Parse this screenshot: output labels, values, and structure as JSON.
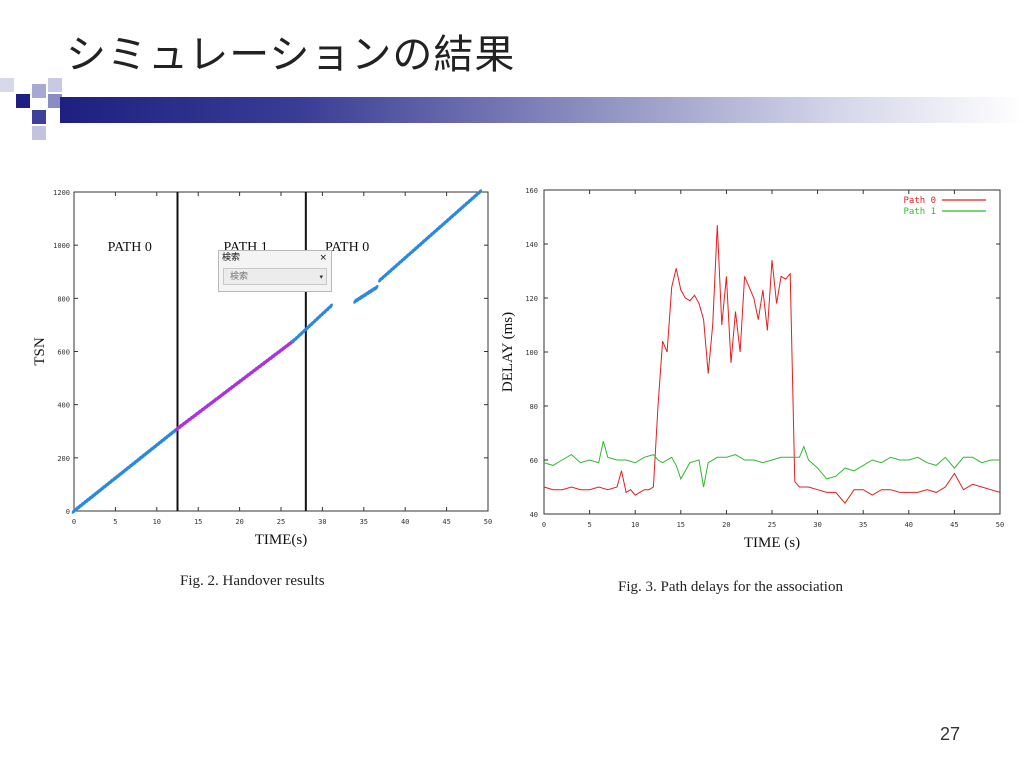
{
  "slide": {
    "title": "シミュレーションの結果",
    "page_number": "27",
    "accent_color": "#1d2080"
  },
  "search_popup": {
    "header": "検索",
    "close_icon": "×",
    "select_value": "検索",
    "arrow": "▾"
  },
  "figures": {
    "fig2_caption": "Fig. 2. Handover results",
    "fig3_caption": "Fig. 3. Path delays for the association"
  },
  "chart_data": [
    {
      "type": "scatter",
      "xlabel": "TIME(s)",
      "ylabel": "TSN",
      "xlim": [
        0,
        50
      ],
      "ylim": [
        0,
        1200
      ],
      "xticks": [
        "0",
        "5",
        "10",
        "15",
        "20",
        "25",
        "30",
        "35",
        "40",
        "45",
        "50"
      ],
      "yticks": [
        "0",
        "200",
        "400",
        "600",
        "800",
        "1000",
        "1200"
      ],
      "region_labels": [
        "PATH 0",
        "PATH 1",
        "PATH 0"
      ],
      "handover_lines": [
        12.5,
        28
      ],
      "series": [
        {
          "color": "#2b88e0",
          "x": [
            0,
            12.5
          ],
          "y": [
            0,
            310
          ]
        },
        {
          "color": "#a833e0",
          "x": [
            12.5,
            26.5
          ],
          "y": [
            310,
            640
          ]
        },
        {
          "color": "#2b88e0",
          "x": [
            26.5,
            31
          ],
          "y": [
            640,
            770
          ]
        },
        {
          "color": "#2b88e0",
          "x": [
            34,
            36.5
          ],
          "y": [
            790,
            840
          ]
        },
        {
          "color": "#2b88e0",
          "x": [
            37,
            49
          ],
          "y": [
            870,
            1200
          ]
        }
      ]
    },
    {
      "type": "line",
      "xlabel": "TIME (s)",
      "ylabel": "DELAY (ms)",
      "xlim": [
        0,
        50
      ],
      "ylim": [
        40,
        160
      ],
      "xticks": [
        "0",
        "5",
        "10",
        "15",
        "20",
        "25",
        "30",
        "35",
        "40",
        "45",
        "50"
      ],
      "yticks": [
        "40",
        "60",
        "80",
        "100",
        "120",
        "140",
        "160"
      ],
      "legend": "top-right",
      "series": [
        {
          "name": "Path 0",
          "color": "#e02020",
          "x": [
            0,
            1,
            2,
            3,
            4,
            5,
            6,
            7,
            8,
            8.5,
            9,
            9.5,
            10,
            10.5,
            11,
            11.5,
            12,
            12.5,
            13,
            13.5,
            14,
            14.5,
            15,
            15.5,
            16,
            16.5,
            17,
            17.5,
            18,
            18.5,
            19,
            19.5,
            20,
            20.5,
            21,
            21.5,
            22,
            22.5,
            23,
            23.5,
            24,
            24.5,
            25,
            25.5,
            26,
            26.5,
            27,
            27.5,
            28,
            29,
            30,
            31,
            32,
            33,
            34,
            35,
            36,
            37,
            38,
            39,
            40,
            41,
            42,
            43,
            44,
            45,
            46,
            47,
            48,
            49,
            50
          ],
          "y": [
            50,
            49,
            49,
            50,
            49,
            49,
            50,
            49,
            50,
            56,
            48,
            49,
            47,
            48,
            49,
            49,
            50,
            80,
            104,
            100,
            124,
            131,
            123,
            120,
            119,
            121,
            118,
            112,
            92,
            110,
            147,
            110,
            128,
            96,
            115,
            100,
            128,
            124,
            120,
            112,
            123,
            108,
            134,
            118,
            128,
            127,
            129,
            52,
            50,
            50,
            49,
            48,
            48,
            44,
            49,
            49,
            47,
            49,
            49,
            48,
            48,
            48,
            49,
            48,
            50,
            55,
            49,
            51,
            50,
            49,
            48
          ]
        },
        {
          "name": "Path 1",
          "color": "#30b830",
          "x": [
            0,
            1,
            2,
            3,
            4,
            5,
            6,
            6.5,
            7,
            8,
            9,
            10,
            11,
            12,
            12.5,
            13,
            14,
            14.5,
            15,
            16,
            17,
            17.5,
            18,
            19,
            20,
            21,
            22,
            23,
            24,
            25,
            26,
            27,
            28,
            28.5,
            29,
            30,
            31,
            32,
            33,
            34,
            35,
            36,
            37,
            38,
            39,
            40,
            41,
            42,
            43,
            44,
            45,
            46,
            47,
            48,
            49,
            50
          ],
          "y": [
            59,
            58,
            60,
            62,
            59,
            60,
            59,
            67,
            61,
            60,
            60,
            59,
            61,
            62,
            60,
            59,
            61,
            58,
            53,
            59,
            60,
            50,
            59,
            61,
            61,
            62,
            60,
            60,
            59,
            60,
            61,
            61,
            61,
            65,
            60,
            57,
            53,
            54,
            57,
            56,
            58,
            60,
            59,
            61,
            60,
            60,
            61,
            59,
            58,
            61,
            57,
            61,
            61,
            59,
            60,
            60
          ]
        }
      ]
    }
  ]
}
